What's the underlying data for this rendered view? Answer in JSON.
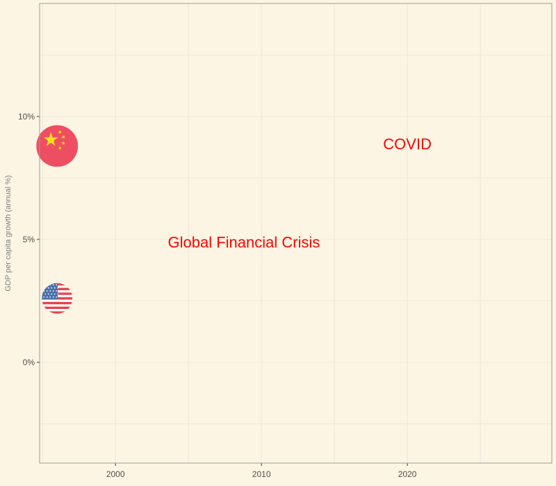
{
  "chart_data": {
    "type": "scatter",
    "title": "",
    "xlabel": "",
    "ylabel": "GDP per capita growth (annual %)",
    "xlim": [
      1994.8,
      2029.9
    ],
    "ylim": [
      -4.1,
      14.6
    ],
    "x_ticks": [
      2000,
      2010,
      2020
    ],
    "x_tick_labels": [
      "2000",
      "2010",
      "2020"
    ],
    "y_ticks": [
      0,
      5,
      10
    ],
    "y_tick_labels": [
      "0%",
      "5%",
      "10%"
    ],
    "grid": true,
    "legend": "none",
    "points": [
      {
        "label": "China",
        "x": 1996,
        "y": 8.8,
        "icon": "china-flag-icon"
      },
      {
        "label": "United States",
        "x": 1996,
        "y": 2.6,
        "icon": "us-flag-icon"
      }
    ],
    "annotations": [
      {
        "text": "Global Financial Crisis",
        "x": 2008.8,
        "y": 4.9
      },
      {
        "text": "COVID",
        "x": 2020,
        "y": 8.9
      }
    ],
    "colors": {
      "background": "#fdf5e3",
      "grid": "#ebe6dc",
      "panel_border": "#9a9a9a",
      "annotation": "#ff0000",
      "china_red": "#ee4e62",
      "china_star": "#ffde21",
      "us_red": "#e8424d",
      "us_white": "#ffffff",
      "us_blue": "#4a70a8"
    }
  }
}
